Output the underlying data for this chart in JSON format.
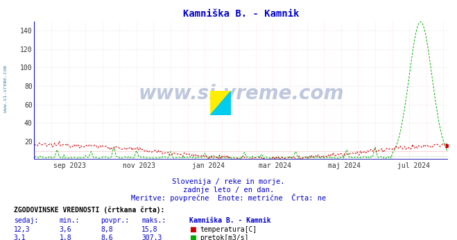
{
  "title": "Kamniška B. - Kamnik",
  "title_color": "#0000cc",
  "bg_color": "#ffffff",
  "plot_bg_color": "#ffffff",
  "grid_color_h": "#dddddd",
  "grid_color_v": "#ddaaaa",
  "y_min": 0,
  "y_max": 150,
  "y_ticks": [
    20,
    40,
    60,
    80,
    100,
    120,
    140
  ],
  "x_tick_labels": [
    "sep 2023",
    "nov 2023",
    "jan 2024",
    "mar 2024",
    "maj 2024",
    "jul 2024"
  ],
  "temp_color": "#cc0000",
  "flow_color": "#00aa00",
  "temp_avg": 8.8,
  "flow_avg": 8.6,
  "temp_min": 3.6,
  "flow_min": 1.8,
  "temp_max": 15.8,
  "flow_max": 307.3,
  "temp_current": 12.3,
  "flow_current": 3.1,
  "watermark": "www.si-vreme.com",
  "watermark_color": "#1a3a8a",
  "subtitle1": "Slovenija / reke in morje.",
  "subtitle2": "zadnje leto / en dan.",
  "subtitle3": "Meritve: povprečne  Enote: metrične  Črta: ne",
  "subtitle_color": "#0000cc",
  "table_header": "ZGODOVINSKE VREDNOSTI (črtkana črta):",
  "col1": "sedaj:",
  "col2": "min.:",
  "col3": "povpr.:",
  "col4": "maks.:",
  "col5": "Kamniška B. - Kamnik",
  "label1": "temperatura[C]",
  "label2": "pretok[m3/s]",
  "side_label": "www.si-vreme.com",
  "side_label_color": "#4488aa",
  "n_points": 365,
  "month_ticks": [
    31,
    92,
    153,
    212,
    273,
    334
  ],
  "flow_scale": 0.4878,
  "spike_positions": [
    20,
    50,
    70,
    90,
    120,
    150,
    185,
    200,
    230,
    275,
    300,
    328,
    340,
    356
  ],
  "spike_heights": [
    22,
    18,
    28,
    20,
    18,
    14,
    16,
    12,
    18,
    22,
    28,
    80,
    307,
    35
  ]
}
